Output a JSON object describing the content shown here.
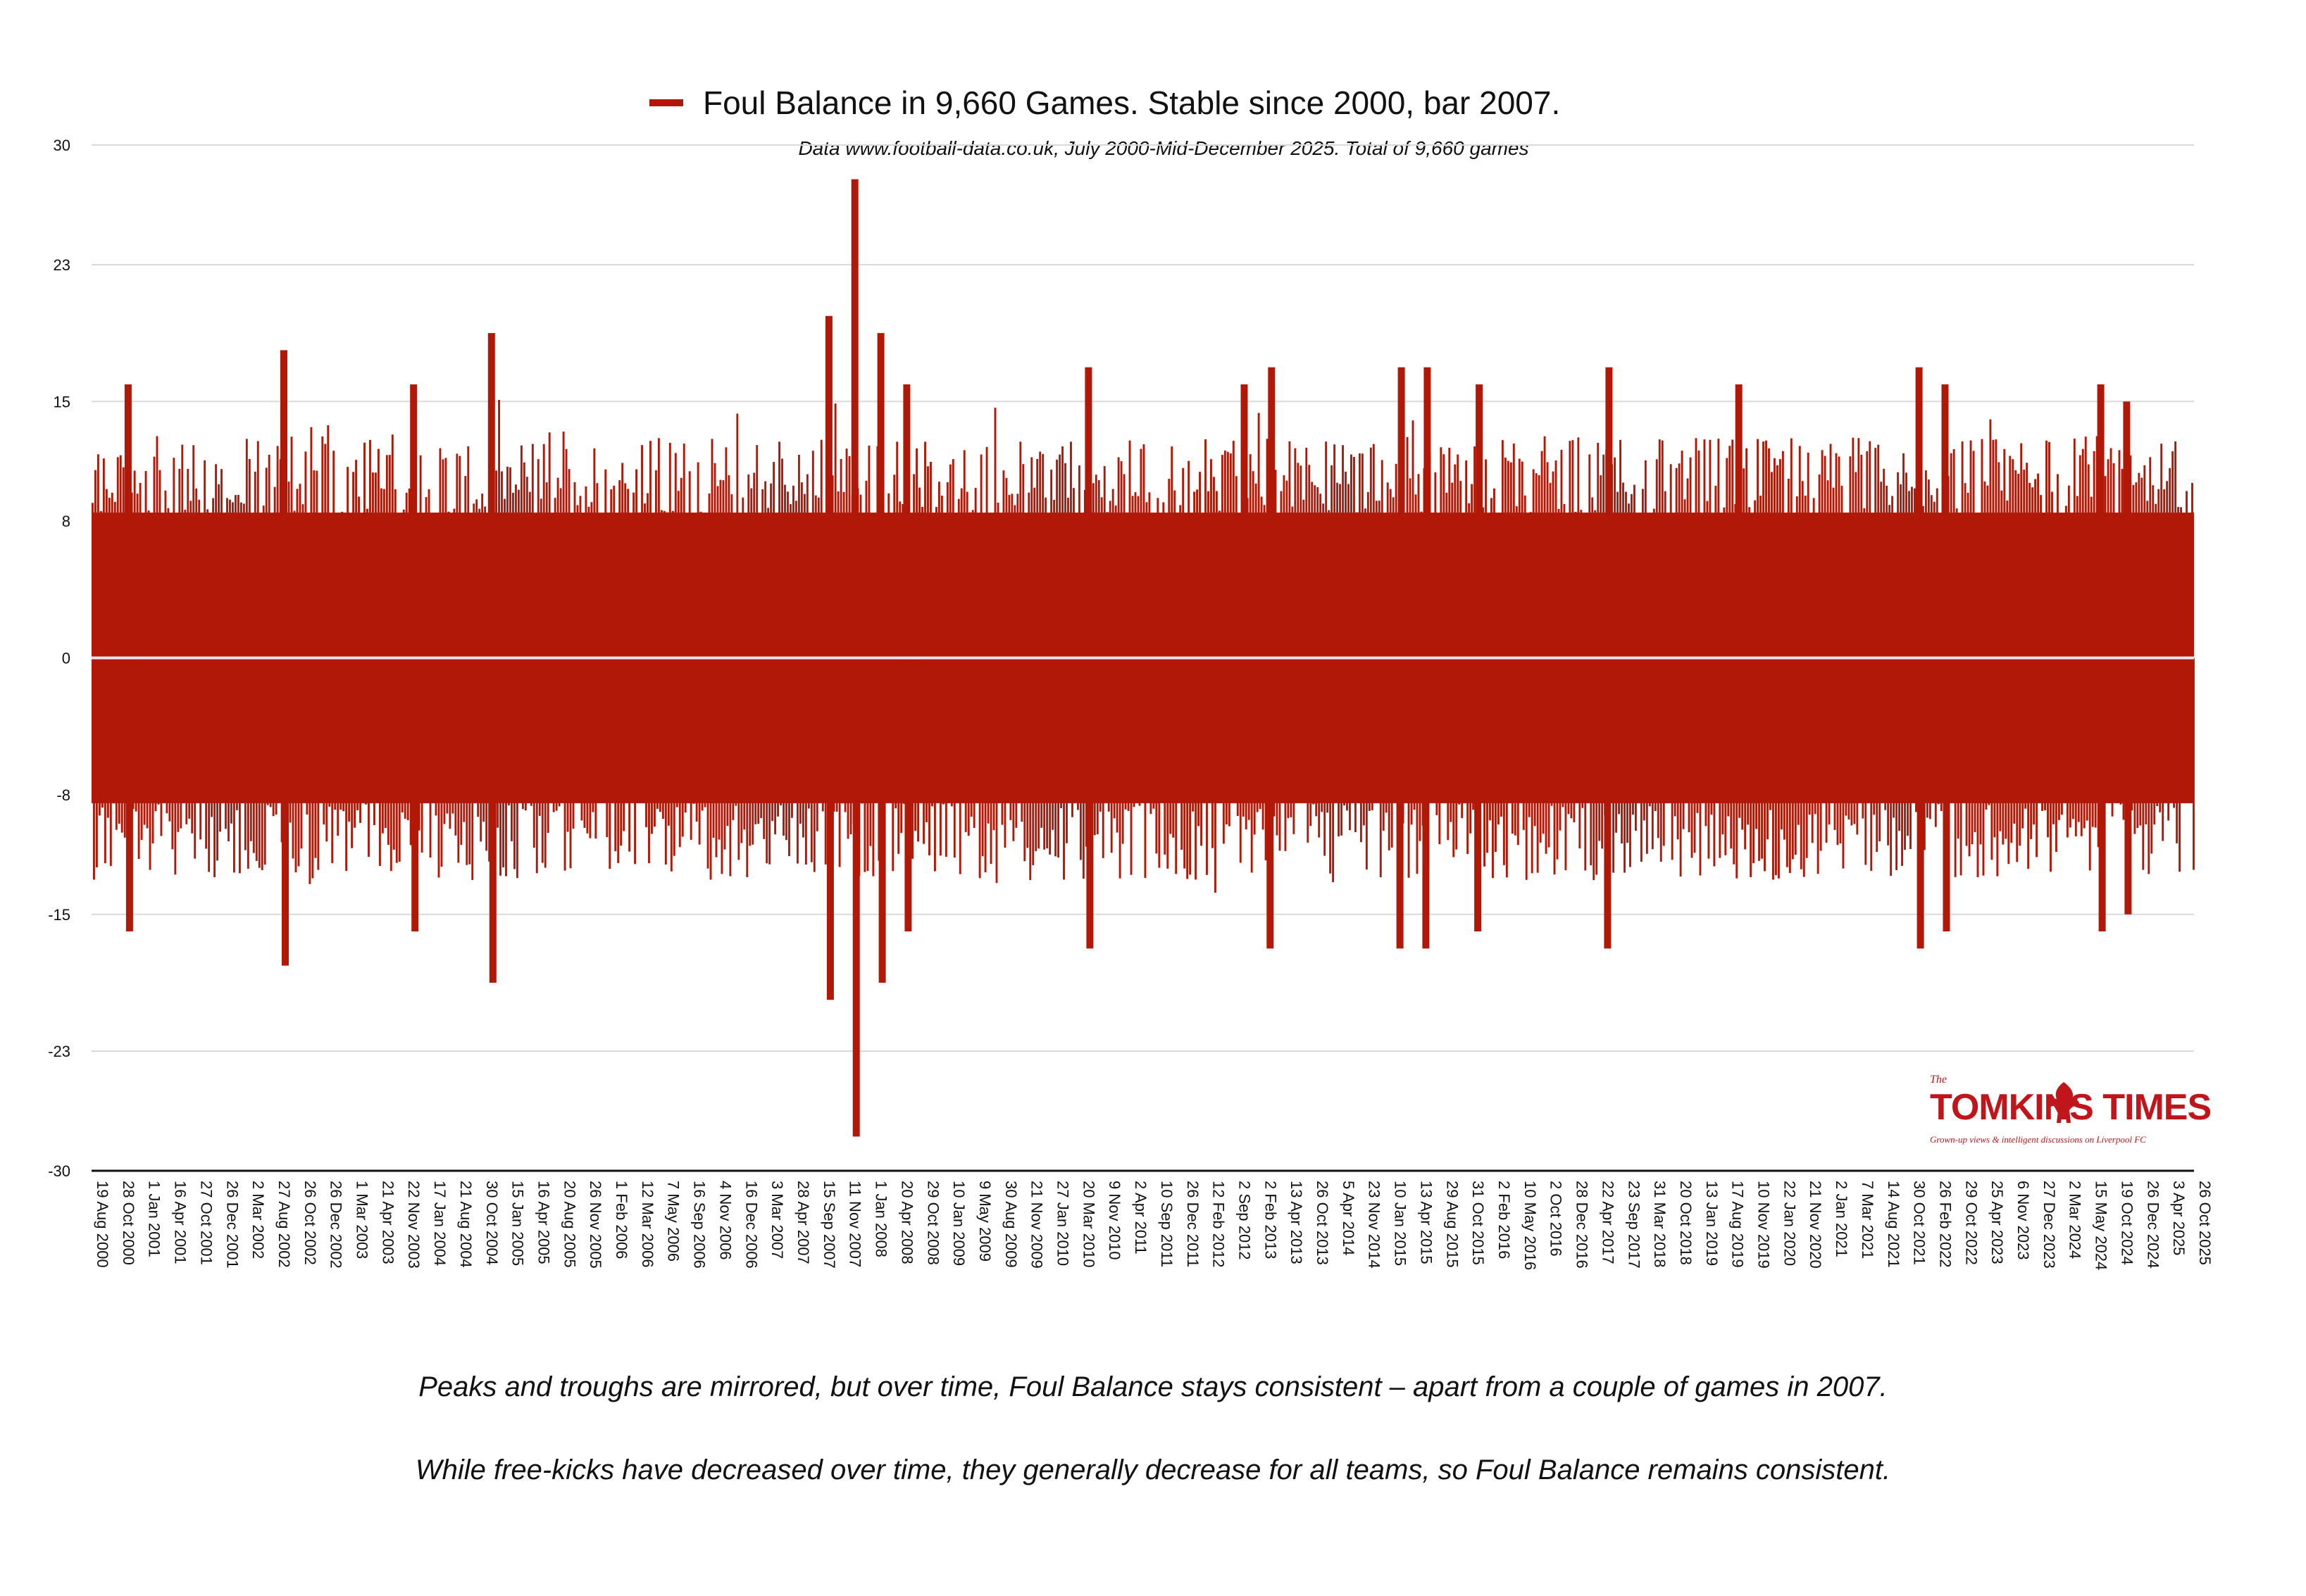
{
  "chart_data": {
    "type": "bar",
    "legend_label": "Foul Balance in 9,660 Games. Stable since 2000, bar 2007.",
    "legend_placement": "top-center",
    "subtitle": "Data www.football-data.co.uk, July 2000-Mid-December 2025. Total of 9,660 games",
    "series_name": "Foul Balance",
    "series_color": "#b21807",
    "ylim": [
      -30,
      30
    ],
    "y_ticks": [
      "30",
      "23",
      "15",
      "8",
      "0",
      "-8",
      "-15",
      "-23",
      "-30"
    ],
    "y_tick_values": [
      30,
      23,
      15,
      8,
      0,
      -8,
      -15,
      -23,
      -30
    ],
    "grid": true,
    "x_tick_labels": [
      "19 Aug 2000",
      "28 Oct 2000",
      "1 Jan 2001",
      "16 Apr 2001",
      "27 Oct 2001",
      "26 Dec 2001",
      "2 Mar 2002",
      "27 Aug 2002",
      "26 Oct 2002",
      "26 Dec 2002",
      "1 Mar 2003",
      "21 Apr 2003",
      "22 Nov 2003",
      "17 Jan 2004",
      "21 Aug 2004",
      "30 Oct 2004",
      "15 Jan 2005",
      "16 Apr 2005",
      "20 Aug 2005",
      "26 Nov 2005",
      "1 Feb 2006",
      "12 Mar 2006",
      "7 May 2006",
      "16 Sep 2006",
      "4 Nov 2006",
      "16 Dec 2006",
      "3 Mar 2007",
      "28 Apr 2007",
      "15 Sep 2007",
      "11 Nov 2007",
      "1 Jan 2008",
      "20 Apr 2008",
      "29 Oct 2008",
      "10 Jan 2009",
      "9 May 2009",
      "30 Aug 2009",
      "21 Nov 2009",
      "27 Jan 2010",
      "20 Mar 2010",
      "9 Nov 2010",
      "2 Apr 2011",
      "10 Sep 2011",
      "26 Dec 2011",
      "12 Feb 2012",
      "2 Sep 2012",
      "2 Feb 2013",
      "13 Apr 2013",
      "26 Oct 2013",
      "5 Apr 2014",
      "23 Nov 2014",
      "10 Jan 2015",
      "13 Apr 2015",
      "29 Aug 2015",
      "31 Oct 2015",
      "2 Feb 2016",
      "10 May 2016",
      "2 Oct 2016",
      "28 Dec 2016",
      "22 Apr 2017",
      "23 Sep 2017",
      "31 Mar 2018",
      "20 Oct 2018",
      "13 Jan 2019",
      "17 Aug 2019",
      "10 Nov 2019",
      "22 Jan 2020",
      "21 Nov 2020",
      "2 Jan 2021",
      "7 Mar 2021",
      "14 Aug 2021",
      "30 Oct 2021",
      "26 Feb 2022",
      "29 Oct 2022",
      "25 Apr 2023",
      "6 Nov 2023",
      "27 Dec 2023",
      "2 Mar 2024",
      "15 May 2024",
      "19 Oct 2024",
      "26 Dec 2024",
      "3 Apr 2025",
      "26 Oct 2025"
    ],
    "date_range": [
      "19 Aug 2000",
      "26 Oct 2025"
    ],
    "total_games": 9660,
    "typical_abs_range": [
      8,
      13
    ],
    "notable_values": [
      {
        "date": "28 Oct 2000",
        "value": 16
      },
      {
        "date": "28 Oct 2000",
        "value": -16
      },
      {
        "date": "27 Aug 2002",
        "value": 18
      },
      {
        "date": "27 Aug 2002",
        "value": -18
      },
      {
        "date": "22 Nov 2003",
        "value": 16
      },
      {
        "date": "22 Nov 2003",
        "value": -16
      },
      {
        "date": "30 Oct 2004",
        "value": 19
      },
      {
        "date": "30 Oct 2004",
        "value": -19
      },
      {
        "date": "15 Sep 2007",
        "value": 20
      },
      {
        "date": "15 Sep 2007",
        "value": -20
      },
      {
        "date": "11 Nov 2007",
        "value": 28
      },
      {
        "date": "11 Nov 2007",
        "value": -28
      },
      {
        "date": "1 Jan 2008",
        "value": 19
      },
      {
        "date": "1 Jan 2008",
        "value": -19
      },
      {
        "date": "20 Apr 2008",
        "value": 16
      },
      {
        "date": "20 Apr 2008",
        "value": -16
      },
      {
        "date": "20 Mar 2010",
        "value": 17
      },
      {
        "date": "20 Mar 2010",
        "value": -17
      },
      {
        "date": "2 Sep 2012",
        "value": 16
      },
      {
        "date": "2 Feb 2013",
        "value": 17
      },
      {
        "date": "2 Feb 2013",
        "value": -17
      },
      {
        "date": "10 Jan 2015",
        "value": 17
      },
      {
        "date": "10 Jan 2015",
        "value": -17
      },
      {
        "date": "13 Apr 2015",
        "value": 17
      },
      {
        "date": "13 Apr 2015",
        "value": -17
      },
      {
        "date": "31 Oct 2015",
        "value": 16
      },
      {
        "date": "31 Oct 2015",
        "value": -16
      },
      {
        "date": "22 Apr 2017",
        "value": 17
      },
      {
        "date": "22 Apr 2017",
        "value": -17
      },
      {
        "date": "17 Aug 2019",
        "value": 16
      },
      {
        "date": "30 Oct 2021",
        "value": 17
      },
      {
        "date": "30 Oct 2021",
        "value": -17
      },
      {
        "date": "26 Feb 2022",
        "value": 16
      },
      {
        "date": "26 Feb 2022",
        "value": -16
      },
      {
        "date": "15 May 2024",
        "value": 16
      },
      {
        "date": "15 May 2024",
        "value": -16
      },
      {
        "date": "19 Oct 2024",
        "value": 15
      },
      {
        "date": "19 Oct 2024",
        "value": -15
      }
    ]
  },
  "captions": [
    "Peaks and troughs are mirrored, but over time, Foul Balance stays consistent – apart from a couple of games in 2007.",
    "While free-kicks have decreased over time, they generally decrease for all teams, so Foul Balance remains consistent."
  ],
  "logo": {
    "the": "The",
    "title": "TOMKINS TIMES",
    "tagline": "Grown-up views & intelligent discussions on Liverpool FC",
    "color": "#c0161b"
  }
}
